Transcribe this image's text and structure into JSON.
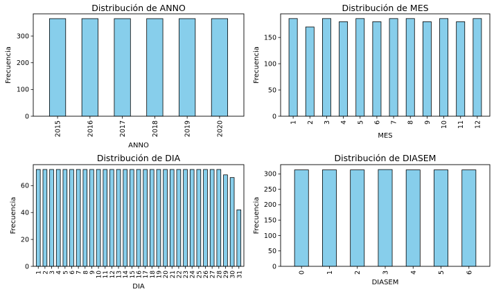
{
  "chart_data": [
    {
      "type": "bar",
      "title": "Distribución de ANNO",
      "xlabel": "ANNO",
      "ylabel": "Frecuencia",
      "categories": [
        "2015",
        "2016",
        "2017",
        "2018",
        "2019",
        "2020"
      ],
      "values": [
        365,
        365,
        365,
        365,
        365,
        365
      ],
      "ylim": [
        0,
        383
      ],
      "yticks": [
        0,
        100,
        200,
        300
      ],
      "bar_color": "#87ceeb"
    },
    {
      "type": "bar",
      "title": "Distribución de MES",
      "xlabel": "MES",
      "ylabel": "Frecuencia",
      "categories": [
        "1",
        "2",
        "3",
        "4",
        "5",
        "6",
        "7",
        "8",
        "9",
        "10",
        "11",
        "12"
      ],
      "values": [
        186,
        170,
        186,
        180,
        186,
        180,
        186,
        186,
        180,
        186,
        180,
        186
      ],
      "ylim": [
        0,
        195
      ],
      "yticks": [
        0,
        50,
        100,
        150
      ],
      "bar_color": "#87ceeb"
    },
    {
      "type": "bar",
      "title": "Distribución de DIA",
      "xlabel": "DIA",
      "ylabel": "Frecuencia",
      "categories": [
        "1",
        "2",
        "3",
        "4",
        "5",
        "6",
        "7",
        "8",
        "9",
        "10",
        "11",
        "12",
        "13",
        "14",
        "15",
        "16",
        "17",
        "18",
        "19",
        "20",
        "21",
        "22",
        "23",
        "24",
        "25",
        "26",
        "27",
        "28",
        "29",
        "30",
        "31"
      ],
      "values": [
        72,
        72,
        72,
        72,
        72,
        72,
        72,
        72,
        72,
        72,
        72,
        72,
        72,
        72,
        72,
        72,
        72,
        72,
        72,
        72,
        72,
        72,
        72,
        72,
        72,
        72,
        72,
        72,
        68,
        66,
        42
      ],
      "ylim": [
        0,
        75.6
      ],
      "yticks": [
        0,
        20,
        40,
        60
      ],
      "bar_color": "#87ceeb"
    },
    {
      "type": "bar",
      "title": "Distribución de DIASEM",
      "xlabel": "DIASEM",
      "ylabel": "Frecuencia",
      "categories": [
        "0",
        "1",
        "2",
        "3",
        "4",
        "5",
        "6"
      ],
      "values": [
        313,
        313,
        313,
        314,
        313,
        313,
        313
      ],
      "ylim": [
        0,
        330
      ],
      "yticks": [
        0,
        50,
        100,
        150,
        200,
        250,
        300
      ],
      "bar_color": "#87ceeb"
    }
  ]
}
